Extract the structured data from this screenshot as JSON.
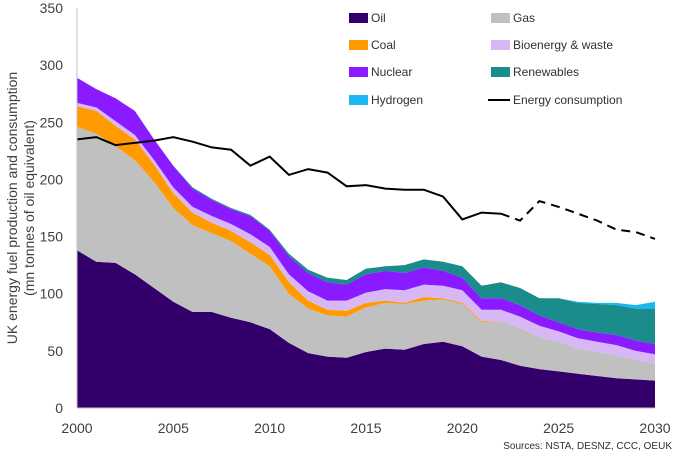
{
  "chart_data": {
    "type": "area",
    "title": "",
    "ylabel": "UK energy fuel production and consumption",
    "ylabel_sub": "(mn tonnes of oil equivalent)",
    "xlabel": "",
    "x": [
      2000,
      2001,
      2002,
      2003,
      2004,
      2005,
      2006,
      2007,
      2008,
      2009,
      2010,
      2011,
      2012,
      2013,
      2014,
      2015,
      2016,
      2017,
      2018,
      2019,
      2020,
      2021,
      2022,
      2023,
      2024,
      2025,
      2026,
      2027,
      2028,
      2029,
      2030
    ],
    "xlim": [
      2000,
      2030
    ],
    "ylim": [
      0,
      350
    ],
    "xticks": [
      2000,
      2005,
      2010,
      2015,
      2020,
      2025,
      2030
    ],
    "xtick_labels": [
      "2000",
      "2005",
      "2010",
      "2015",
      "2020",
      "2025",
      "2030"
    ],
    "yticks": [
      0,
      50,
      100,
      150,
      200,
      250,
      300,
      350
    ],
    "ytick_labels": [
      "0",
      "50",
      "100",
      "150",
      "200",
      "250",
      "300",
      "350"
    ],
    "grid": false,
    "legend_position": "top-right",
    "series": [
      {
        "name": "Oil",
        "color": "#33006b",
        "values": [
          138,
          128,
          127,
          117,
          105,
          93,
          84,
          84,
          79,
          75,
          69,
          57,
          48,
          45,
          44,
          49,
          52,
          51,
          56,
          58,
          54,
          45,
          42,
          37,
          34,
          32,
          30,
          28,
          26,
          25,
          24
        ]
      },
      {
        "name": "Gas",
        "color": "#c0c0c0",
        "values": [
          108,
          112,
          102,
          100,
          93,
          82,
          76,
          69,
          67,
          60,
          55,
          43,
          39,
          36,
          36,
          39,
          40,
          40,
          38,
          37,
          37,
          30,
          34,
          33,
          28,
          26,
          22,
          21,
          20,
          17,
          15
        ]
      },
      {
        "name": "Coal",
        "color": "#ff9a00",
        "values": [
          18,
          20,
          18,
          18,
          15,
          13,
          11,
          9,
          9,
          10,
          10,
          10,
          7,
          5,
          5,
          4,
          2,
          1,
          3,
          1,
          1,
          1,
          0,
          0,
          0,
          0,
          0,
          0,
          0,
          0,
          0
        ]
      },
      {
        "name": "Bioenergy & waste",
        "color": "#d7b8f5",
        "values": [
          3,
          3,
          4,
          4,
          4,
          5,
          5,
          6,
          6,
          7,
          7,
          7,
          8,
          8,
          9,
          9,
          10,
          11,
          11,
          11,
          11,
          10,
          10,
          10,
          10,
          9,
          9,
          9,
          9,
          8,
          8
        ]
      },
      {
        "name": "Nuclear",
        "color": "#8a1aff",
        "values": [
          22,
          16,
          20,
          21,
          18,
          19,
          16,
          14,
          13,
          16,
          14,
          16,
          16,
          16,
          14,
          16,
          16,
          15,
          15,
          13,
          11,
          10,
          10,
          10,
          9,
          8,
          8,
          8,
          9,
          9,
          9
        ]
      },
      {
        "name": "Renewables",
        "color": "#1a8c8c",
        "values": [
          0,
          0,
          0,
          0,
          0,
          0,
          1,
          1,
          1,
          1,
          1,
          2,
          3,
          4,
          4,
          5,
          4,
          7,
          7,
          8,
          10,
          11,
          14,
          15,
          15,
          21,
          23,
          25,
          26,
          28,
          31
        ]
      },
      {
        "name": "Hydrogen",
        "color": "#1ab8f0",
        "values": [
          0,
          0,
          0,
          0,
          0,
          0,
          0,
          0,
          0,
          0,
          0,
          0,
          0,
          0,
          0,
          0,
          0,
          0,
          0,
          0,
          0,
          0,
          0,
          0,
          0,
          0,
          1,
          1,
          2,
          3,
          6
        ]
      },
      {
        "name": "Energy consumption",
        "color": "#000000",
        "type": "line",
        "values": [
          235,
          237,
          230,
          232,
          234,
          237,
          233,
          228,
          226,
          212,
          220,
          204,
          209,
          206,
          194,
          195,
          192,
          191,
          191,
          185,
          165,
          171,
          170,
          164,
          181,
          176,
          170,
          164,
          156,
          154,
          148
        ],
        "dashed_from": 2022
      }
    ],
    "source": "Sources: NSTA, DESNZ, CCC, OEUK"
  }
}
